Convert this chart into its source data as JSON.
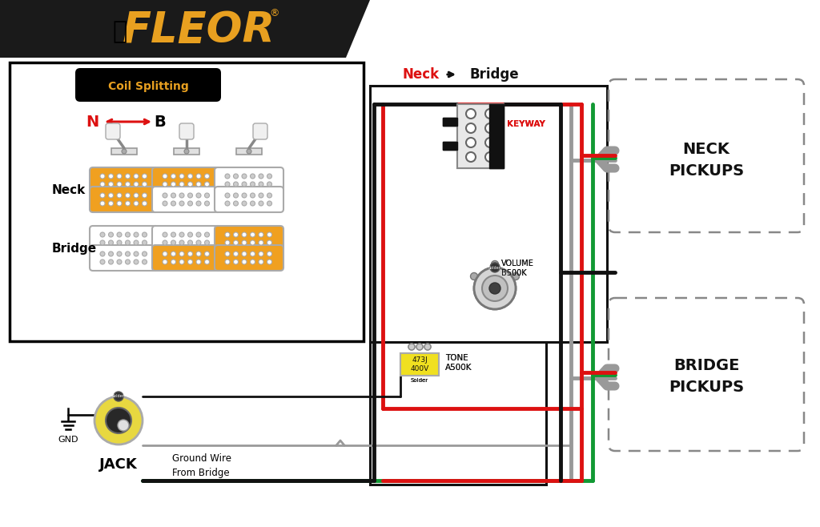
{
  "bg_color": "#ffffff",
  "header_bg": "#1a1a1a",
  "header_text": "FLEOR",
  "header_text_color": "#e8a020",
  "wire_red": "#dd1111",
  "wire_black": "#111111",
  "wire_green": "#119933",
  "wire_gray": "#999999",
  "pickup_fill_active": "#f0a020",
  "pickup_fill_inactive": "#ffffff",
  "pickup_stroke": "#aaaaaa",
  "label_neck": "Neck",
  "label_bridge": "Bridge",
  "label_neck_pickups": "NECK\nPICKUPS",
  "label_bridge_pickups": "BRIDGE\nPICKUPS",
  "label_volume": "VOLUME\nB500K",
  "label_tone": "TONE\nA500K",
  "label_jack": "JACK",
  "label_gnd": "GND",
  "label_keyway": "KEYWAY",
  "label_coil_split": "Coil Splitting",
  "label_ground_wire": "Ground Wire\nFrom Bridge",
  "neck_arrow_label_n": "N",
  "neck_arrow_label_b": "B",
  "cap_label": "473J\n400V",
  "solder_label": "Solder"
}
